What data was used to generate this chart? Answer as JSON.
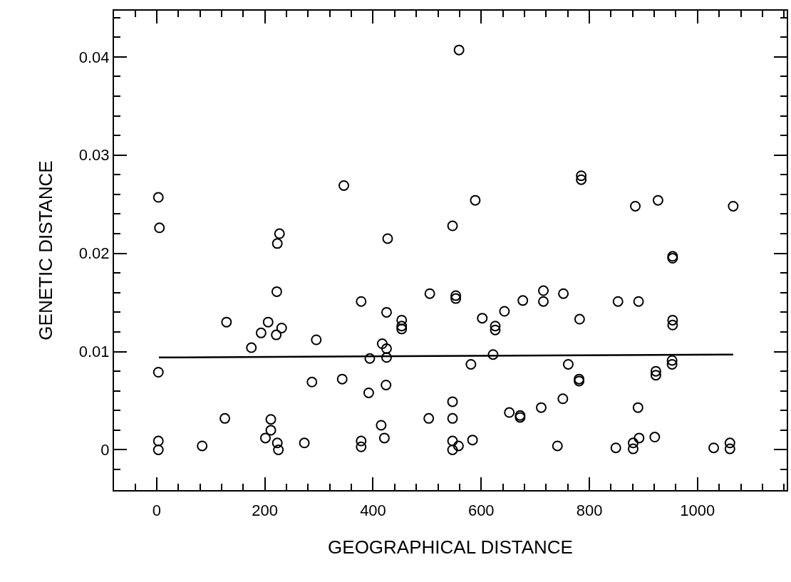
{
  "chart_data": {
    "type": "scatter",
    "xlabel": "GEOGRAPHICAL DISTANCE",
    "ylabel": "GENETIC DISTANCE",
    "xlim": [
      -79,
      1165
    ],
    "ylim": [
      -0.0041,
      0.0447
    ],
    "xticks": [
      {
        "value": -40,
        "label": null
      },
      0,
      {
        "value": 40,
        "label": null
      },
      {
        "value": 80,
        "label": null
      },
      {
        "value": 120,
        "label": null
      },
      {
        "value": 160,
        "label": null
      },
      200,
      {
        "value": 240,
        "label": null
      },
      {
        "value": 280,
        "label": null
      },
      {
        "value": 320,
        "label": null
      },
      {
        "value": 360,
        "label": null
      },
      400,
      {
        "value": 440,
        "label": null
      },
      {
        "value": 480,
        "label": null
      },
      {
        "value": 520,
        "label": null
      },
      {
        "value": 560,
        "label": null
      },
      600,
      {
        "value": 640,
        "label": null
      },
      {
        "value": 680,
        "label": null
      },
      {
        "value": 720,
        "label": null
      },
      {
        "value": 760,
        "label": null
      },
      800,
      {
        "value": 840,
        "label": null
      },
      {
        "value": 880,
        "label": null
      },
      {
        "value": 920,
        "label": null
      },
      {
        "value": 960,
        "label": null
      },
      1000,
      {
        "value": 1040,
        "label": null
      },
      {
        "value": 1080,
        "label": null
      },
      {
        "value": 1120,
        "label": null
      },
      {
        "value": 1160,
        "label": null
      }
    ],
    "yticks": [
      {
        "value": -0.002,
        "label": null
      },
      0,
      {
        "value": 0.002,
        "label": null
      },
      {
        "value": 0.004,
        "label": null
      },
      {
        "value": 0.006,
        "label": null
      },
      {
        "value": 0.008,
        "label": null
      },
      0.01,
      {
        "value": 0.012,
        "label": null
      },
      {
        "value": 0.014,
        "label": null
      },
      {
        "value": 0.016,
        "label": null
      },
      {
        "value": 0.018,
        "label": null
      },
      0.02,
      {
        "value": 0.022,
        "label": null
      },
      {
        "value": 0.024,
        "label": null
      },
      {
        "value": 0.026,
        "label": null
      },
      {
        "value": 0.028,
        "label": null
      },
      0.03,
      {
        "value": 0.032,
        "label": null
      },
      {
        "value": 0.034,
        "label": null
      },
      {
        "value": 0.036,
        "label": null
      },
      {
        "value": 0.038,
        "label": null
      },
      0.04,
      {
        "value": 0.042,
        "label": null
      },
      {
        "value": 0.044,
        "label": null
      }
    ],
    "grid": false,
    "series": [
      {
        "color": "#000000",
        "marker": "circle",
        "x": [
          3,
          5,
          3,
          3,
          3,
          84,
          126,
          129,
          175,
          193,
          206,
          221,
          231,
          222,
          227,
          223,
          287,
          295,
          211,
          211,
          201,
          223,
          225,
          273,
          343,
          378,
          378,
          394,
          392,
          417,
          425,
          425,
          424,
          415,
          421,
          503,
          547,
          547,
          547,
          547,
          558,
          453,
          453,
          453,
          346,
          427,
          378,
          425,
          505,
          547,
          553,
          553,
          559,
          589,
          785,
          785,
          885,
          927,
          1066,
          954,
          954,
          602,
          626,
          626,
          643,
          677,
          715,
          715,
          752,
          853,
          891,
          782,
          954,
          954,
          622,
          581,
          761,
          781,
          781,
          923,
          923,
          953,
          953,
          584,
          652,
          672,
          672,
          711,
          751,
          741,
          849,
          881,
          881,
          892,
          890,
          921,
          1030,
          1060,
          1060
        ],
        "values": [
          0.0257,
          0.0226,
          0.0079,
          0.0009,
          0,
          0.0004,
          0.0032,
          0.013,
          0.0104,
          0.0119,
          0.013,
          0.0117,
          0.0124,
          0.0161,
          0.022,
          0.021,
          0.0069,
          0.0112,
          0.0031,
          0.002,
          0.0012,
          0.0007,
          0,
          0.0007,
          0.0072,
          0.0009,
          0.0003,
          0.0093,
          0.0058,
          0.0108,
          0.0103,
          0.0094,
          0.0066,
          0.0025,
          0.0012,
          0.0032,
          0.0049,
          0.0032,
          0.0009,
          0,
          0.0004,
          0.0132,
          0.0126,
          0.0123,
          0.0269,
          0.0215,
          0.0151,
          0.014,
          0.0159,
          0.0228,
          0.0157,
          0.0154,
          0.0407,
          0.0254,
          0.0279,
          0.0275,
          0.0248,
          0.0254,
          0.0248,
          0.0197,
          0.0195,
          0.0134,
          0.0126,
          0.0122,
          0.0141,
          0.0152,
          0.0162,
          0.0151,
          0.0159,
          0.0151,
          0.0151,
          0.0133,
          0.0132,
          0.0127,
          0.0097,
          0.0087,
          0.0087,
          0.0072,
          0.007,
          0.008,
          0.0076,
          0.0091,
          0.0087,
          0.001,
          0.0038,
          0.0035,
          0.0033,
          0.0043,
          0.0052,
          0.0004,
          0.0002,
          0.0007,
          0.0001,
          0.0012,
          0.0043,
          0.0013,
          0.0002,
          0.0007,
          0.0001
        ]
      },
      {
        "type": "line",
        "marker": "none",
        "color": "#000000",
        "x": [
          4,
          1066
        ],
        "values": [
          0.0094,
          0.0097
        ]
      }
    ]
  }
}
